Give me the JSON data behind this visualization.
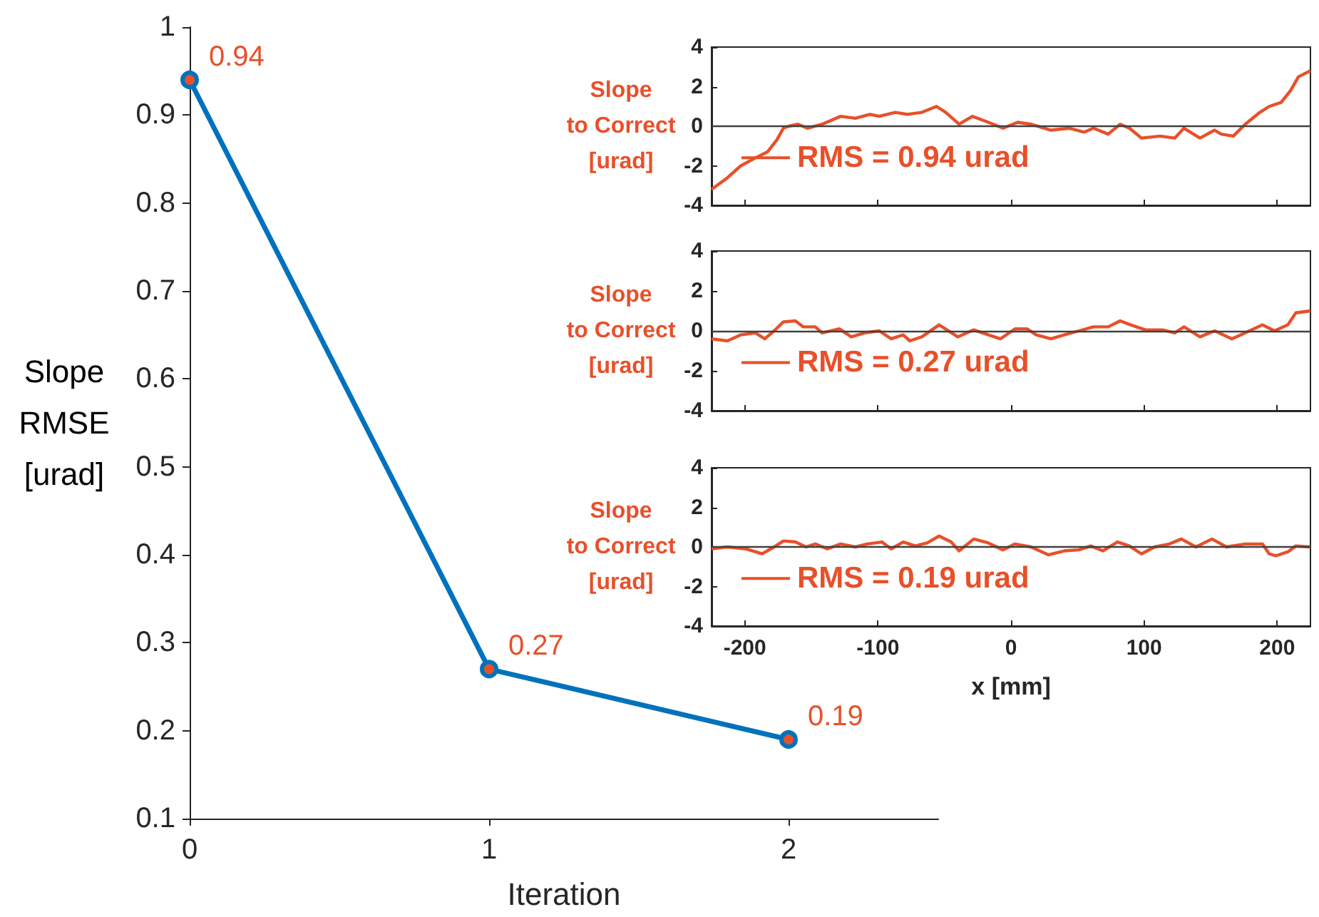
{
  "chart_data": [
    {
      "type": "line",
      "xlabel": "Iteration",
      "ylabel": "Slope\nRMSE\n[urad]",
      "x": [
        0,
        1,
        2
      ],
      "xlim": [
        0,
        2.5
      ],
      "xticks": [
        0,
        1,
        2
      ],
      "ylim": [
        0.1,
        1
      ],
      "yticks": [
        0.1,
        0.2,
        0.3,
        0.4,
        0.5,
        0.6,
        0.7,
        0.8,
        0.9,
        1
      ],
      "marker": "circle",
      "data_labels": true,
      "series": [
        {
          "color": "#0072bd",
          "values": [
            0.94,
            0.27,
            0.19
          ]
        }
      ]
    },
    {
      "type": "line",
      "ylabel": "Slope\nto Correct\n[urad]",
      "xlim": [
        -225,
        225
      ],
      "xticks": [
        -200,
        -100,
        0,
        100,
        200
      ],
      "ylim": [
        -4,
        4
      ],
      "yticks": [
        -4,
        -2,
        0,
        2,
        4
      ],
      "tick_labels": "y",
      "legend": "bottom left",
      "ref_lines": [
        {
          "axis": "y",
          "value": 0,
          "color": "#404040"
        }
      ],
      "x": [
        -225,
        -213,
        -203,
        -192,
        -183,
        -176,
        -171,
        -167,
        -160,
        -153,
        -142,
        -128,
        -117,
        -106,
        -99,
        -87,
        -78,
        -67,
        -56,
        -49,
        -39,
        -29,
        -17,
        -6,
        5,
        15,
        30,
        44,
        55,
        62,
        73,
        82,
        89,
        98,
        112,
        123,
        130,
        142,
        153,
        158,
        167,
        176,
        187,
        194,
        203,
        210,
        216,
        225
      ],
      "series": [
        {
          "name": "RMS = 0.94 urad",
          "color": "#e8502a",
          "values": [
            -3.2,
            -2.6,
            -2.0,
            -1.6,
            -1.3,
            -0.7,
            -0.1,
            0,
            0.1,
            -0.1,
            0.1,
            0.5,
            0.4,
            0.6,
            0.5,
            0.7,
            0.6,
            0.7,
            1.0,
            0.7,
            0.1,
            0.5,
            0.2,
            -0.1,
            0.2,
            0.1,
            -0.2,
            -0.1,
            -0.3,
            -0.1,
            -0.4,
            0.1,
            -0.1,
            -0.6,
            -0.5,
            -0.6,
            -0.1,
            -0.6,
            -0.2,
            -0.4,
            -0.5,
            0.1,
            0.7,
            1.0,
            1.2,
            1.8,
            2.5,
            2.8
          ]
        }
      ]
    },
    {
      "type": "line",
      "ylabel": "Slope\nto Correct\n[urad]",
      "xlim": [
        -225,
        225
      ],
      "xticks": [
        -200,
        -100,
        0,
        100,
        200
      ],
      "ylim": [
        -4,
        4
      ],
      "yticks": [
        -4,
        -2,
        0,
        2,
        4
      ],
      "tick_labels": "y",
      "legend": "bottom left",
      "ref_lines": [
        {
          "axis": "y",
          "value": 0,
          "color": "#404040"
        }
      ],
      "x": [
        -225,
        -213,
        -203,
        -192,
        -185,
        -178,
        -171,
        -162,
        -156,
        -147,
        -142,
        -129,
        -120,
        -110,
        -99,
        -90,
        -81,
        -76,
        -67,
        -54,
        -40,
        -28,
        -17,
        -8,
        3,
        12,
        19,
        30,
        40,
        51,
        62,
        73,
        82,
        90,
        101,
        114,
        123,
        130,
        142,
        153,
        166,
        176,
        189,
        198,
        208,
        214,
        225
      ],
      "series": [
        {
          "name": "RMS = 0.27 urad",
          "color": "#e8502a",
          "values": [
            -0.4,
            -0.5,
            -0.2,
            -0.1,
            -0.4,
            0,
            0.45,
            0.5,
            0.2,
            0.2,
            -0.1,
            0.1,
            -0.3,
            -0.1,
            0,
            -0.4,
            -0.2,
            -0.5,
            -0.3,
            0.3,
            -0.3,
            0.05,
            -0.2,
            -0.4,
            0.1,
            0.1,
            -0.2,
            -0.4,
            -0.2,
            0,
            0.2,
            0.2,
            0.5,
            0.3,
            0.05,
            0.05,
            -0.1,
            0.2,
            -0.3,
            0,
            -0.4,
            -0.1,
            0.3,
            0,
            0.3,
            0.9,
            1.0
          ]
        }
      ]
    },
    {
      "type": "line",
      "xlabel": "x [mm]",
      "ylabel": "Slope\nto Correct\n[urad]",
      "xlim": [
        -225,
        225
      ],
      "xticks": [
        -200,
        -100,
        0,
        100,
        200
      ],
      "ylim": [
        -4,
        4
      ],
      "yticks": [
        -4,
        -2,
        0,
        2,
        4
      ],
      "legend": "bottom left",
      "ref_lines": [
        {
          "axis": "y",
          "value": 0,
          "color": "#404040"
        }
      ],
      "x": [
        -225,
        -213,
        -199,
        -187,
        -178,
        -171,
        -162,
        -154,
        -147,
        -138,
        -128,
        -117,
        -108,
        -97,
        -90,
        -81,
        -72,
        -63,
        -54,
        -45,
        -39,
        -28,
        -17,
        -6,
        3,
        15,
        28,
        40,
        51,
        60,
        69,
        80,
        89,
        98,
        108,
        119,
        128,
        139,
        151,
        162,
        176,
        189,
        194,
        199,
        208,
        214,
        225
      ],
      "series": [
        {
          "name": "RMS = 0.19 urad",
          "color": "#e8502a",
          "values": [
            -0.1,
            0,
            -0.1,
            -0.35,
            0,
            0.3,
            0.25,
            0,
            0.15,
            -0.1,
            0.15,
            0,
            0.15,
            0.25,
            -0.1,
            0.25,
            0.05,
            0.2,
            0.55,
            0.25,
            -0.2,
            0.4,
            0.2,
            -0.15,
            0.15,
            0,
            -0.4,
            -0.2,
            -0.15,
            0.05,
            -0.2,
            0.25,
            0.05,
            -0.35,
            0,
            0.15,
            0.4,
            0,
            0.4,
            0,
            0.15,
            0.15,
            -0.35,
            -0.45,
            -0.25,
            0.05,
            0
          ]
        }
      ]
    }
  ]
}
